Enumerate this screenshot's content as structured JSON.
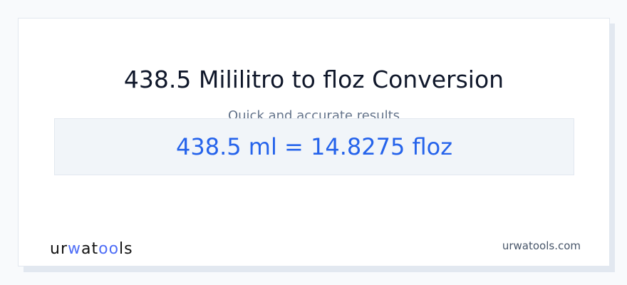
{
  "header": {
    "title": "438.5 Mililitro to floz Conversion",
    "subtitle": "Quick and accurate results"
  },
  "result": {
    "text": "438.5 ml = 14.8275 floz"
  },
  "footer": {
    "logo_text": "urwatools",
    "site": "urwatools.com"
  },
  "colors": {
    "accent": "#2563eb",
    "logo_accent": "#4f6ef7",
    "background": "#f8fafc"
  }
}
